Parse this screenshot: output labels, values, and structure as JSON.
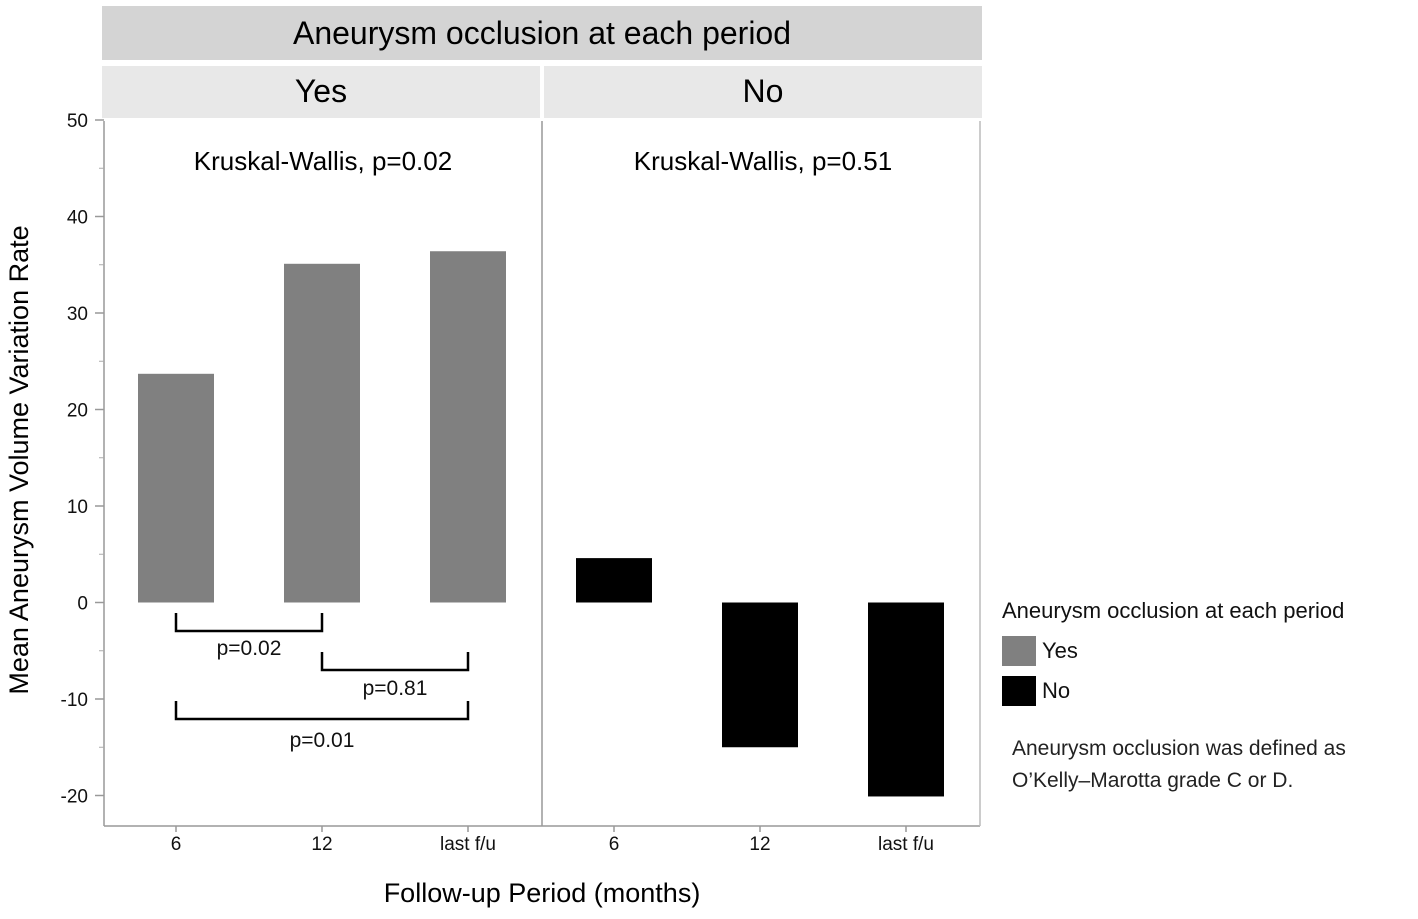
{
  "chart_data": {
    "type": "bar",
    "title": "Aneurysm occlusion at each period",
    "xlabel": "Follow-up Period (months)",
    "ylabel": "Mean Aneurysm Volume Variation Rate",
    "ylim": [
      -23,
      50
    ],
    "yticks": [
      "50",
      "40",
      "30",
      "20",
      "10",
      "0",
      "-10",
      "-20"
    ],
    "categories": [
      "6",
      "12",
      "last f/u"
    ],
    "facets": [
      {
        "label": "Yes",
        "stat": "Kruskal-Wallis, p=0.02",
        "color": "#808080",
        "values": [
          23.7,
          35.1,
          36.4
        ],
        "comparisons": [
          {
            "from": 0,
            "to": 1,
            "label": "p=0.02"
          },
          {
            "from": 1,
            "to": 2,
            "label": "p=0.81"
          },
          {
            "from": 0,
            "to": 2,
            "label": "p=0.01"
          }
        ]
      },
      {
        "label": "No",
        "stat": "Kruskal-Wallis, p=0.51",
        "color": "#000000",
        "values": [
          4.6,
          -15.0,
          -20.1
        ],
        "comparisons": []
      }
    ],
    "legend": {
      "title": "Aneurysm occlusion at each period",
      "position": "right",
      "items": [
        {
          "label": "Yes",
          "color": "#808080"
        },
        {
          "label": "No",
          "color": "#000000"
        }
      ]
    },
    "note_lines": [
      "Aneurysm occlusion was defined as",
      "O’Kelly–Marotta grade C or D."
    ]
  }
}
